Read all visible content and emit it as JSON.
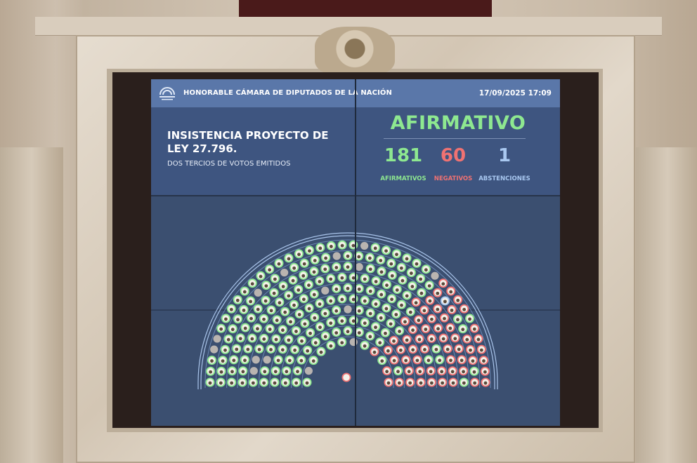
{
  "header": {
    "logo_text": "DIPUTADOS ARGENTINA",
    "chamber": "HONORABLE CÁMARA DE DIPUTADOS DE LA NACIÓN",
    "datetime": "17/09/2025 17:09"
  },
  "motion": {
    "title": "INSISTENCIA PROYECTO DE LEY 27.796.",
    "majority": "DOS TERCIOS DE VOTOS EMITIDOS"
  },
  "result": {
    "outcome": "AFIRMATIVO",
    "affirmative": {
      "count": "181",
      "label": "AFIRMATIVOS"
    },
    "negative": {
      "count": "60",
      "label": "NEGATIVOS"
    },
    "abstention": {
      "count": "1",
      "label": "ABSTENCIONES"
    }
  },
  "colors": {
    "affirmative": "#8ee890",
    "negative": "#f07272",
    "abstention": "#a9c8f0",
    "absent": "#b9b4b0",
    "banner": "#5a77a9",
    "panel": "#3e5580"
  },
  "hemicycle": {
    "affirmative_seats": 181,
    "negative_seats": 60,
    "abstention_seats": 1,
    "absent_seats": 15
  }
}
